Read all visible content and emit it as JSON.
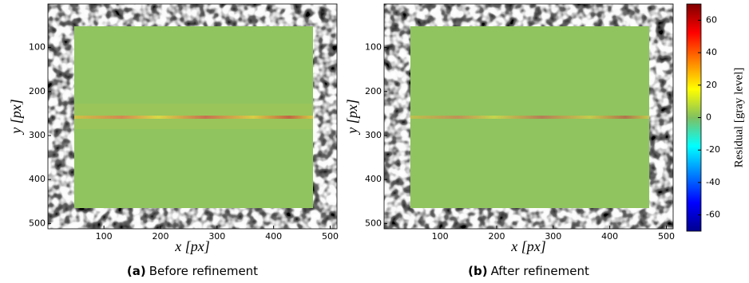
{
  "chart_data": [
    {
      "type": "image",
      "xlabel": "x [px]",
      "ylabel": "y [px]",
      "xlim": [
        1,
        512
      ],
      "ylim": [
        512,
        1
      ],
      "xticks": [
        100,
        200,
        300,
        400,
        500
      ],
      "yticks": [
        100,
        200,
        300,
        400,
        500
      ],
      "caption_label": "(a)",
      "caption": "Before refinement"
    },
    {
      "type": "image",
      "xlabel": "x [px]",
      "ylabel": "y [px]",
      "xlim": [
        1,
        512
      ],
      "ylim": [
        512,
        1
      ],
      "xticks": [
        100,
        200,
        300,
        400,
        500
      ],
      "yticks": [
        100,
        200,
        300,
        400,
        500
      ],
      "caption_label": "(b)",
      "caption": "After refinement"
    },
    {
      "type": "colorbar",
      "ylabel": "Residual [gray level]",
      "ylim": [
        -70,
        70
      ],
      "yticks": [
        -60,
        -40,
        -20,
        0,
        20,
        40,
        60
      ]
    }
  ]
}
